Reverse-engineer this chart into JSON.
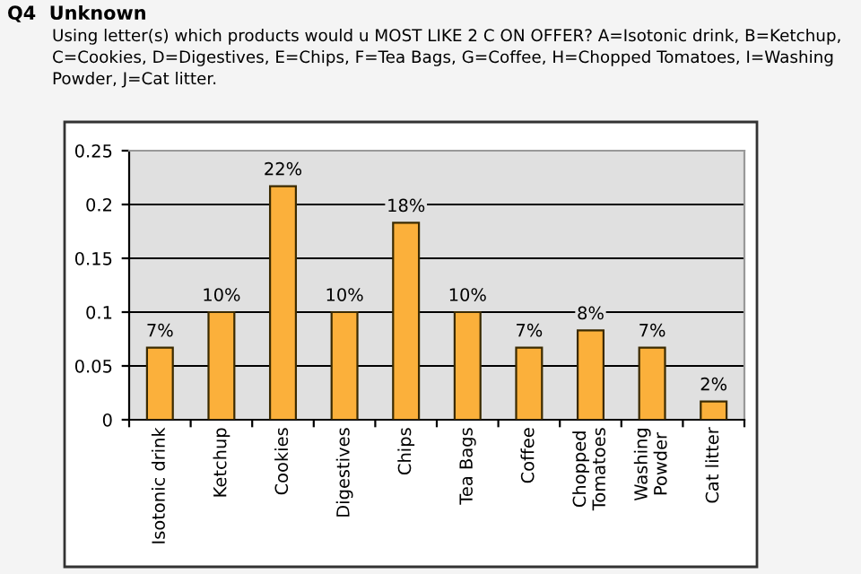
{
  "chart_data": {
    "type": "bar",
    "title": "Q4  Unknown",
    "subtitle": "Using letter(s) which products would u MOST LIKE 2 C ON OFFER? A=Isotonic drink, B=Ketchup, C=Cookies, D=Digestives, E=Chips, F=Tea Bags, G=Coffee, H=Chopped Tomatoes, I=Washing Powder, J=Cat litter.",
    "categories": [
      "Isotonic drink",
      "Ketchup",
      "Cookies",
      "Digestives",
      "Chips",
      "Tea Bags",
      "Coffee",
      "Chopped\nTomatoes",
      "Washing\nPowder",
      "Cat litter"
    ],
    "values": [
      0.067,
      0.1,
      0.217,
      0.1,
      0.183,
      0.1,
      0.067,
      0.083,
      0.067,
      0.017
    ],
    "value_labels": [
      "7%",
      "10%",
      "22%",
      "10%",
      "18%",
      "10%",
      "7%",
      "8%",
      "7%",
      "2%"
    ],
    "color": "#fbb03b",
    "ylim": [
      0,
      0.25
    ],
    "yticks": [
      0,
      0.05,
      0.1,
      0.15,
      0.2,
      0.25
    ],
    "grid": "y"
  }
}
